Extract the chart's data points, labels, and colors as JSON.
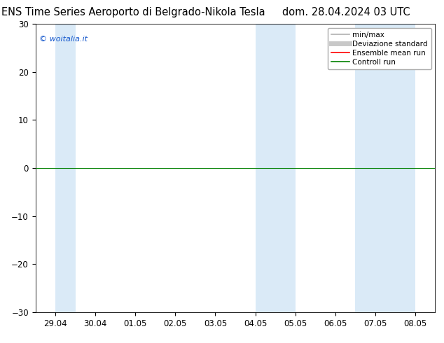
{
  "title_left": "ENS Time Series Aeroporto di Belgrado-Nikola Tesla",
  "title_right": "dom. 28.04.2024 03 UTC",
  "ylim": [
    -30,
    30
  ],
  "yticks": [
    -30,
    -20,
    -10,
    0,
    10,
    20,
    30
  ],
  "xtick_labels": [
    "29.04",
    "30.04",
    "01.05",
    "02.05",
    "03.05",
    "04.05",
    "05.05",
    "06.05",
    "07.05",
    "08.05"
  ],
  "watermark": "© woitalia.it",
  "shaded_bands": [
    {
      "xmin": 0.0,
      "xmax": 0.5,
      "color": "#daeaf7"
    },
    {
      "xmin": 5.0,
      "xmax": 5.5,
      "color": "#daeaf7"
    },
    {
      "xmin": 5.5,
      "xmax": 6.0,
      "color": "#daeaf7"
    },
    {
      "xmin": 7.5,
      "xmax": 8.0,
      "color": "#daeaf7"
    },
    {
      "xmin": 8.0,
      "xmax": 9.0,
      "color": "#daeaf7"
    }
  ],
  "legend_items": [
    {
      "label": "min/max",
      "color": "#b0b0b0",
      "lw": 1.2,
      "ls": "-"
    },
    {
      "label": "Deviazione standard",
      "color": "#c8c8c8",
      "lw": 5,
      "ls": "-"
    },
    {
      "label": "Ensemble mean run",
      "color": "#ff0000",
      "lw": 1.2,
      "ls": "-"
    },
    {
      "label": "Controll run",
      "color": "#008000",
      "lw": 1.2,
      "ls": "-"
    }
  ],
  "background_color": "#ffffff",
  "title_fontsize": 10.5,
  "tick_fontsize": 8.5,
  "legend_fontsize": 7.5
}
